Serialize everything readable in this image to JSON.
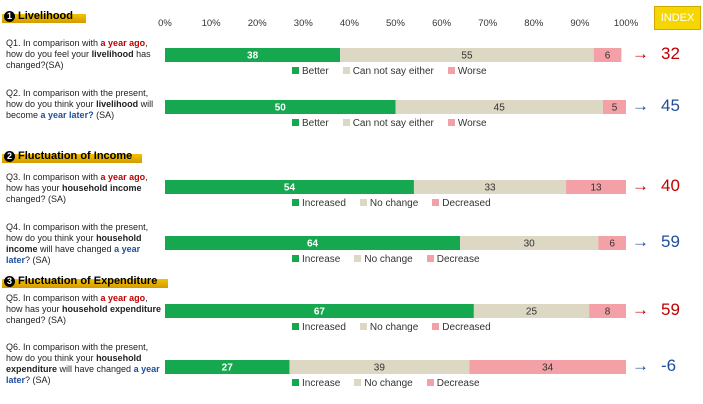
{
  "index_label": "INDEX",
  "sections": [
    {
      "num": "1",
      "title": "Livelihood"
    },
    {
      "num": "2",
      "title": "Fluctuation of Income"
    },
    {
      "num": "3",
      "title": "Fluctuation of Expenditure"
    }
  ],
  "colors": {
    "positive": "#16a84f",
    "neutral": "#ddd8c4",
    "negative": "#f3a0a6",
    "arrow_red": "#c00000",
    "arrow_blue": "#1f4e9a"
  },
  "chart_data": {
    "type": "bar",
    "orientation": "horizontal",
    "stacked": true,
    "xlim": [
      0,
      100
    ],
    "x_ticks": [
      "0%",
      "10%",
      "20%",
      "30%",
      "40%",
      "50%",
      "60%",
      "70%",
      "80%",
      "90%",
      "100%"
    ],
    "grid": false,
    "rows": [
      {
        "id": "q1",
        "values": [
          38,
          55,
          6
        ],
        "labels": [
          "Better",
          "Can not say either",
          "Worse"
        ],
        "index": "32",
        "arrow": "→",
        "arrow_color": "red"
      },
      {
        "id": "q2",
        "values": [
          50,
          45,
          5
        ],
        "labels": [
          "Better",
          "Can not say either",
          "Worse"
        ],
        "index": "45",
        "arrow": "→",
        "arrow_color": "blue"
      },
      {
        "id": "q3",
        "values": [
          54,
          33,
          13
        ],
        "labels": [
          "Increased",
          "No change",
          "Decreased"
        ],
        "index": "40",
        "arrow": "→",
        "arrow_color": "red"
      },
      {
        "id": "q4",
        "values": [
          64,
          30,
          6
        ],
        "labels": [
          "Increase",
          "No change",
          "Decrease"
        ],
        "index": "59",
        "arrow": "→",
        "arrow_color": "blue"
      },
      {
        "id": "q5",
        "values": [
          67,
          25,
          8
        ],
        "labels": [
          "Increased",
          "No change",
          "Decreased"
        ],
        "index": "59",
        "arrow": "→",
        "arrow_color": "red"
      },
      {
        "id": "q6",
        "values": [
          27,
          39,
          34
        ],
        "labels": [
          "Increase",
          "No change",
          "Decrease"
        ],
        "index": "-6",
        "arrow": "→",
        "arrow_color": "blue"
      }
    ]
  },
  "questions": [
    {
      "parts": [
        {
          "t": "Q1. In comparison with "
        },
        {
          "t": "a year ago",
          "c": "hl-red"
        },
        {
          "t": ", how do you feel your "
        },
        {
          "t": "livelihood",
          "c": "b"
        },
        {
          "t": " has changed?(SA)"
        }
      ]
    },
    {
      "parts": [
        {
          "t": "Q2. In comparison with the present, how do you think your "
        },
        {
          "t": "livelihood",
          "c": "b"
        },
        {
          "t": " will become "
        },
        {
          "t": "a year later?",
          "c": "hl-blue"
        },
        {
          "t": " (SA)"
        }
      ]
    },
    {
      "parts": [
        {
          "t": "Q3. In comparison with "
        },
        {
          "t": "a year ago",
          "c": "hl-red"
        },
        {
          "t": ", how has your "
        },
        {
          "t": "household income",
          "c": "b"
        },
        {
          "t": " changed? (SA)"
        }
      ]
    },
    {
      "parts": [
        {
          "t": "Q4. In comparison with the present, how do you think your "
        },
        {
          "t": "household income",
          "c": "b"
        },
        {
          "t": " will have changed "
        },
        {
          "t": "a year later",
          "c": "hl-blue"
        },
        {
          "t": "? (SA)"
        }
      ]
    },
    {
      "parts": [
        {
          "t": "Q5. In comparison with "
        },
        {
          "t": "a year ago",
          "c": "hl-red"
        },
        {
          "t": ", how has your "
        },
        {
          "t": "household expenditure",
          "c": "b"
        },
        {
          "t": " changed? (SA)"
        }
      ]
    },
    {
      "parts": [
        {
          "t": "Q6. In comparison with the present, how do you think your "
        },
        {
          "t": "household expenditure",
          "c": "b"
        },
        {
          "t": " will have changed "
        },
        {
          "t": "a year later",
          "c": "hl-blue"
        },
        {
          "t": "? (SA)"
        }
      ]
    }
  ]
}
